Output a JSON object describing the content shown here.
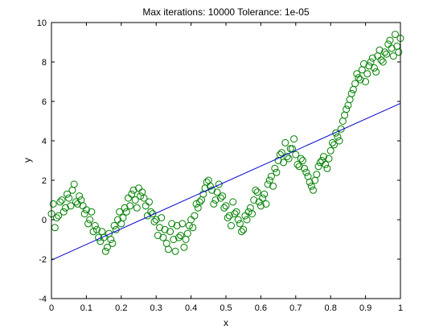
{
  "chart_data": {
    "type": "scatter",
    "title": "Max iterations: 10000 Tolerance: 1e-05",
    "xlabel": "x",
    "ylabel": "y",
    "xlim": [
      0,
      1
    ],
    "ylim": [
      -4,
      10
    ],
    "xticks": [
      0,
      0.1,
      0.2,
      0.3,
      0.4,
      0.5,
      0.6,
      0.7,
      0.8,
      0.9,
      1
    ],
    "xtick_labels": [
      "0",
      "0.1",
      "0.2",
      "0.3",
      "0.4",
      "0.5",
      "0.6",
      "0.7",
      "0.8",
      "0.9",
      "1"
    ],
    "yticks": [
      -4,
      -2,
      0,
      2,
      4,
      6,
      8,
      10
    ],
    "ytick_labels": [
      "-4",
      "-2",
      "0",
      "2",
      "4",
      "6",
      "8",
      "10"
    ],
    "grid": false,
    "legend": "none",
    "marker_color": "#008000",
    "line_color": "#0000cc",
    "fit_line": {
      "x": [
        0,
        1
      ],
      "y": [
        -2.05,
        5.9
      ]
    },
    "series": [
      {
        "type": "scatter",
        "marker": "circle-open",
        "x": [
          0.0,
          0.01,
          0.02,
          0.03,
          0.04,
          0.05,
          0.06,
          0.07,
          0.08,
          0.09,
          0.1,
          0.11,
          0.12,
          0.13,
          0.14,
          0.15,
          0.16,
          0.17,
          0.18,
          0.19,
          0.2,
          0.21,
          0.22,
          0.23,
          0.24,
          0.25,
          0.26,
          0.27,
          0.28,
          0.29,
          0.3,
          0.31,
          0.32,
          0.33,
          0.34,
          0.35,
          0.36,
          0.37,
          0.38,
          0.39,
          0.4,
          0.41,
          0.42,
          0.43,
          0.44,
          0.45,
          0.46,
          0.47,
          0.48,
          0.49,
          0.5,
          0.51,
          0.52,
          0.53,
          0.54,
          0.55,
          0.56,
          0.57,
          0.58,
          0.59,
          0.6,
          0.61,
          0.62,
          0.63,
          0.64,
          0.65,
          0.66,
          0.67,
          0.68,
          0.69,
          0.7,
          0.71,
          0.72,
          0.73,
          0.74,
          0.75,
          0.76,
          0.77,
          0.78,
          0.79,
          0.8,
          0.81,
          0.82,
          0.83,
          0.84,
          0.85,
          0.86,
          0.87,
          0.88,
          0.89,
          0.9,
          0.91,
          0.92,
          0.93,
          0.94,
          0.95,
          0.96,
          0.97,
          0.98,
          0.99,
          1.0,
          0.005,
          0.015,
          0.025,
          0.035,
          0.045,
          0.055,
          0.065,
          0.075,
          0.085,
          0.095,
          0.105,
          0.115,
          0.125,
          0.135,
          0.145,
          0.155,
          0.165,
          0.175,
          0.185,
          0.195,
          0.205,
          0.215,
          0.225,
          0.235,
          0.245,
          0.255,
          0.265,
          0.275,
          0.285,
          0.295,
          0.305,
          0.315,
          0.325,
          0.335,
          0.345,
          0.355,
          0.365,
          0.375,
          0.385,
          0.395,
          0.405,
          0.415,
          0.425,
          0.435,
          0.445,
          0.455,
          0.465,
          0.475,
          0.485,
          0.495,
          0.505,
          0.515,
          0.525,
          0.535,
          0.545,
          0.555,
          0.565,
          0.575,
          0.585,
          0.595,
          0.605,
          0.615,
          0.625,
          0.635,
          0.645,
          0.655,
          0.665,
          0.675,
          0.685,
          0.695,
          0.705,
          0.715,
          0.725,
          0.735,
          0.745,
          0.755,
          0.765,
          0.775,
          0.785,
          0.795,
          0.805,
          0.815,
          0.825,
          0.835,
          0.845,
          0.855,
          0.865,
          0.875,
          0.885,
          0.895,
          0.905,
          0.915,
          0.925,
          0.935,
          0.945,
          0.955,
          0.965,
          0.975,
          0.985,
          0.995
        ],
        "y": [
          0.3,
          -0.4,
          0.2,
          1.0,
          0.6,
          1.1,
          1.5,
          0.9,
          1.2,
          0.7,
          0.5,
          0.0,
          -0.6,
          -0.5,
          -1.1,
          -0.9,
          -1.4,
          -1.0,
          -0.3,
          0.0,
          -0.2,
          0.6,
          1.1,
          1.3,
          1.0,
          1.6,
          1.4,
          0.7,
          0.9,
          0.3,
          0.0,
          -0.4,
          -0.9,
          -1.2,
          -0.6,
          -1.0,
          -0.3,
          -0.8,
          -1.4,
          -0.7,
          0.0,
          0.2,
          0.6,
          1.0,
          1.6,
          2.0,
          1.5,
          1.0,
          1.8,
          1.2,
          0.7,
          0.2,
          0.9,
          0.4,
          -0.2,
          -0.5,
          0.0,
          0.6,
          1.0,
          1.4,
          0.7,
          1.3,
          1.8,
          2.2,
          2.6,
          3.0,
          3.4,
          3.9,
          3.1,
          3.6,
          3.3,
          2.7,
          3.0,
          2.4,
          1.9,
          1.5,
          2.3,
          2.9,
          3.2,
          2.6,
          3.5,
          3.8,
          4.2,
          4.6,
          5.3,
          5.8,
          6.4,
          6.9,
          7.2,
          7.6,
          7.0,
          7.8,
          8.2,
          7.5,
          8.6,
          8.0,
          8.4,
          9.1,
          8.3,
          8.8,
          9.2,
          0.8,
          0.1,
          0.9,
          0.4,
          1.3,
          0.7,
          1.8,
          0.8,
          1.0,
          0.3,
          -0.2,
          0.4,
          -0.3,
          -0.9,
          -0.6,
          -1.6,
          -0.7,
          -1.2,
          -0.5,
          0.4,
          0.1,
          0.4,
          0.7,
          1.5,
          0.6,
          1.2,
          1.1,
          0.2,
          0.4,
          -0.1,
          -0.8,
          0.1,
          -0.5,
          -1.5,
          -0.2,
          -1.6,
          -0.9,
          -0.2,
          -1.0,
          -0.3,
          -0.4,
          0.8,
          0.9,
          1.3,
          1.9,
          1.7,
          0.8,
          1.4,
          1.1,
          0.6,
          0.1,
          -0.3,
          0.3,
          0.0,
          -0.6,
          0.2,
          0.4,
          0.3,
          1.5,
          0.9,
          1.1,
          0.8,
          2.0,
          1.7,
          2.4,
          3.3,
          2.9,
          3.2,
          3.6,
          4.1,
          2.8,
          3.1,
          2.6,
          2.2,
          1.7,
          2.0,
          2.7,
          3.0,
          2.8,
          3.1,
          3.9,
          4.4,
          4.0,
          5.0,
          5.6,
          6.1,
          6.6,
          7.4,
          7.1,
          7.9,
          7.4,
          8.0,
          7.7,
          8.3,
          8.1,
          8.5,
          8.9,
          8.7,
          9.4,
          8.5
        ]
      }
    ]
  }
}
